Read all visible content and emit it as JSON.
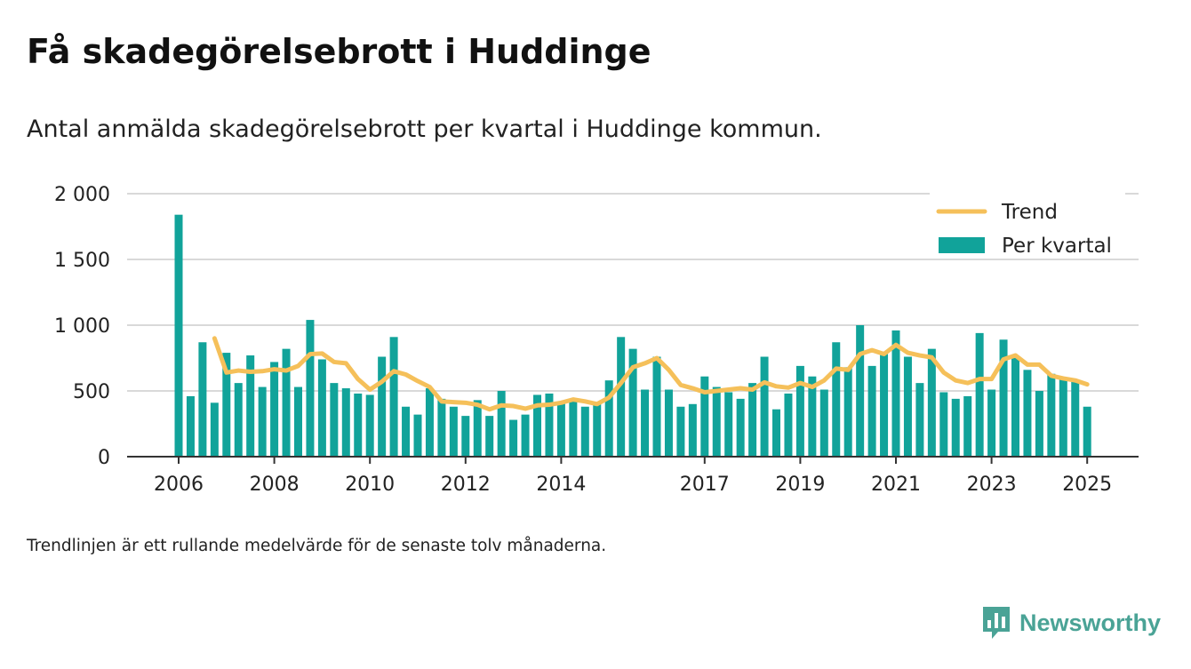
{
  "title": "Få skadegörelsebrott i Huddinge",
  "subtitle": "Antal anmälda skadegörelsebrott per kvartal i Huddinge kommun.",
  "footnote": "Trendlinjen är ett rullande medelvärde för de senaste tolv månaderna.",
  "brand": {
    "name": "Newsworthy",
    "icon": "newsworthy-logo-icon"
  },
  "colors": {
    "bar": "#11a39a",
    "trend": "#f5c05a",
    "grid": "#d9d9d9",
    "axis": "#333333"
  },
  "chart_data": {
    "type": "bar",
    "title": "Få skadegörelsebrott i Huddinge",
    "ylim": [
      0,
      2000
    ],
    "y_ticks": [
      {
        "value": 0,
        "label": "0"
      },
      {
        "value": 500,
        "label": "500"
      },
      {
        "value": 1000,
        "label": "1 000"
      },
      {
        "value": 1500,
        "label": "1 500"
      },
      {
        "value": 2000,
        "label": "2 000"
      }
    ],
    "x_ticks": [
      {
        "index": 0,
        "label": "2006"
      },
      {
        "index": 8,
        "label": "2008"
      },
      {
        "index": 16,
        "label": "2010"
      },
      {
        "index": 24,
        "label": "2012"
      },
      {
        "index": 32,
        "label": "2014"
      },
      {
        "index": 44,
        "label": "2017"
      },
      {
        "index": 52,
        "label": "2019"
      },
      {
        "index": 60,
        "label": "2021"
      },
      {
        "index": 68,
        "label": "2023"
      },
      {
        "index": 76,
        "label": "2025"
      }
    ],
    "grid": true,
    "legend_position": "top-right",
    "categories": [
      "2006 Q1",
      "2006 Q2",
      "2006 Q3",
      "2006 Q4",
      "2007 Q1",
      "2007 Q2",
      "2007 Q3",
      "2007 Q4",
      "2008 Q1",
      "2008 Q2",
      "2008 Q3",
      "2008 Q4",
      "2009 Q1",
      "2009 Q2",
      "2009 Q3",
      "2009 Q4",
      "2010 Q1",
      "2010 Q2",
      "2010 Q3",
      "2010 Q4",
      "2011 Q1",
      "2011 Q2",
      "2011 Q3",
      "2011 Q4",
      "2012 Q1",
      "2012 Q2",
      "2012 Q3",
      "2012 Q4",
      "2013 Q1",
      "2013 Q2",
      "2013 Q3",
      "2013 Q4",
      "2014 Q1",
      "2014 Q2",
      "2014 Q3",
      "2014 Q4",
      "2015 Q1",
      "2015 Q2",
      "2015 Q3",
      "2015 Q4",
      "2016 Q1",
      "2016 Q2",
      "2016 Q3",
      "2016 Q4",
      "2017 Q1",
      "2017 Q2",
      "2017 Q3",
      "2017 Q4",
      "2018 Q1",
      "2018 Q2",
      "2018 Q3",
      "2018 Q4",
      "2019 Q1",
      "2019 Q2",
      "2019 Q3",
      "2019 Q4",
      "2020 Q1",
      "2020 Q2",
      "2020 Q3",
      "2020 Q4",
      "2021 Q1",
      "2021 Q2",
      "2021 Q3",
      "2021 Q4",
      "2022 Q1",
      "2022 Q2",
      "2022 Q3",
      "2022 Q4",
      "2023 Q1",
      "2023 Q2",
      "2023 Q3",
      "2023 Q4",
      "2024 Q1",
      "2024 Q2",
      "2024 Q3",
      "2024 Q4",
      "2025 Q1"
    ],
    "series": [
      {
        "name": "Per kvartal",
        "type": "bar",
        "values": [
          1840,
          460,
          870,
          410,
          790,
          560,
          770,
          530,
          720,
          820,
          530,
          1040,
          740,
          560,
          520,
          480,
          470,
          760,
          910,
          380,
          320,
          520,
          440,
          380,
          310,
          430,
          310,
          500,
          280,
          320,
          470,
          480,
          410,
          420,
          380,
          400,
          580,
          910,
          820,
          510,
          760,
          510,
          380,
          400,
          610,
          530,
          490,
          440,
          560,
          760,
          360,
          480,
          690,
          610,
          510,
          870,
          680,
          1000,
          690,
          780,
          960,
          760,
          560,
          820,
          490,
          440,
          460,
          940,
          510,
          890,
          760,
          660,
          500,
          630,
          590,
          580,
          380
        ]
      },
      {
        "name": "Trend",
        "type": "line",
        "values": [
          null,
          null,
          null,
          900,
          640,
          655,
          645,
          650,
          665,
          655,
          690,
          780,
          785,
          720,
          710,
          590,
          510,
          570,
          650,
          625,
          575,
          530,
          420,
          415,
          410,
          395,
          360,
          390,
          385,
          365,
          390,
          395,
          410,
          435,
          420,
          400,
          450,
          560,
          680,
          710,
          750,
          660,
          545,
          520,
          490,
          500,
          510,
          520,
          510,
          565,
          535,
          525,
          560,
          530,
          580,
          670,
          660,
          780,
          810,
          780,
          850,
          790,
          770,
          755,
          640,
          580,
          560,
          590,
          590,
          740,
          770,
          700,
          700,
          615,
          595,
          580,
          550
        ]
      }
    ]
  }
}
